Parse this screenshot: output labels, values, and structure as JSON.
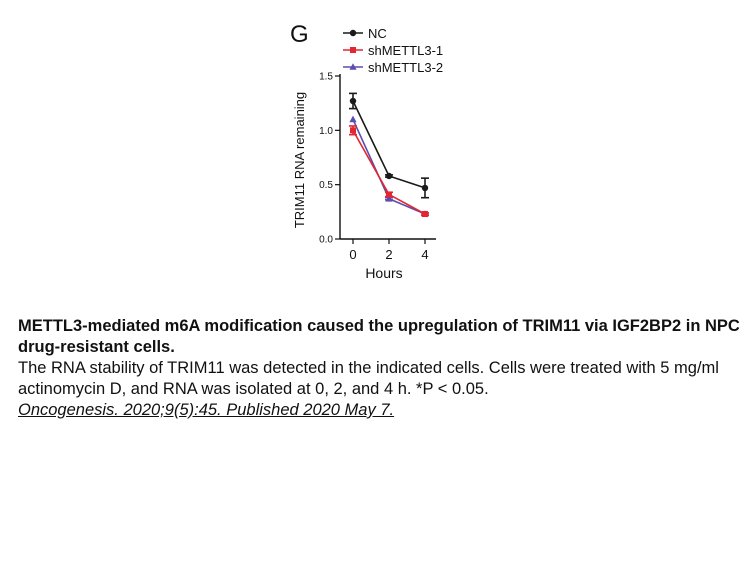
{
  "panel_label": "G",
  "caption": {
    "title": "METTL3-mediated m6A modification caused the upregulation of TRIM11 via IGF2BP2 in NPC drug-resistant cells.",
    "body": "The RNA stability of TRIM11 was detected in the indicated cells. Cells were treated with 5 mg/ml actinomycin D, and RNA was isolated at 0, 2, and 4 h. *P < 0.05.",
    "citation": "Oncogenesis. 2020;9(5):45. Published 2020 May 7. "
  },
  "chart_data": {
    "type": "line",
    "title": "",
    "xlabel": "Hours",
    "ylabel": "TRIM11 RNA remaining",
    "x": [
      0,
      2,
      4
    ],
    "xticks": [
      "0",
      "2",
      "4"
    ],
    "yticks": [
      "0.0",
      "0.5",
      "1.0",
      "1.5"
    ],
    "ylim": [
      0,
      1.5
    ],
    "legend_position": "top",
    "series": [
      {
        "name": "NC",
        "values": [
          1.27,
          0.58,
          0.47
        ],
        "errors": [
          0.07,
          0.01,
          0.09
        ],
        "color": "#1a1a1a",
        "marker": "circle"
      },
      {
        "name": "shMETTL3-1",
        "values": [
          1.0,
          0.41,
          0.23
        ],
        "errors": [
          0.04,
          0.02,
          0.01
        ],
        "color": "#e32630",
        "marker": "square"
      },
      {
        "name": "shMETTL3-2",
        "values": [
          1.1,
          0.37,
          0.23
        ],
        "errors": [
          0.0,
          0.01,
          0.01
        ],
        "color": "#5a4fb0",
        "marker": "triangle"
      }
    ]
  }
}
